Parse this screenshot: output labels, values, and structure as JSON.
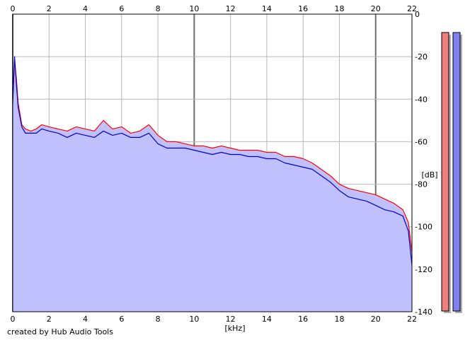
{
  "credit": "created by Hub Audio Tools",
  "chart_data": {
    "type": "line",
    "title": "",
    "xlabel": "[kHz]",
    "ylabel": "[dB]",
    "xlim": [
      0,
      22
    ],
    "ylim": [
      -140,
      0
    ],
    "x_ticks": [
      0,
      2,
      4,
      6,
      8,
      10,
      12,
      14,
      16,
      18,
      20,
      22
    ],
    "y_ticks": [
      0,
      -20,
      -40,
      -60,
      -80,
      -100,
      -120,
      -140
    ],
    "grid": true,
    "legend": "none",
    "x_tick_positions": [
      "top",
      "bottom"
    ],
    "y_tick_position": "right",
    "colors": {
      "plot_background": "#ffffff",
      "gridline": "#b8b8b8",
      "major_gridline": "#6e6e6e",
      "area_fill": "#c0c0ff",
      "left_channel": "#ff0000",
      "right_channel": "#0000c8",
      "meter_left": "#f08080",
      "meter_right": "#8080f0"
    },
    "series": [
      {
        "color": "#ff0000",
        "x": [
          0,
          0.1,
          0.2,
          0.3,
          0.5,
          0.7,
          1.0,
          1.3,
          1.6,
          2.0,
          2.5,
          3.0,
          3.5,
          4.0,
          4.5,
          5.0,
          5.5,
          6.0,
          6.5,
          7.0,
          7.5,
          8.0,
          8.5,
          9.0,
          9.5,
          10.0,
          10.5,
          11.0,
          11.5,
          12.0,
          12.5,
          13.0,
          13.5,
          14.0,
          14.5,
          15.0,
          15.5,
          16.0,
          16.5,
          17.0,
          17.5,
          18.0,
          18.5,
          19.0,
          19.5,
          20.0,
          20.5,
          21.0,
          21.5,
          21.8,
          22.0
        ],
        "values": [
          -40,
          -22,
          -30,
          -42,
          -52,
          -54,
          -55,
          -54,
          -52,
          -53,
          -54,
          -55,
          -53,
          -54,
          -55,
          -50,
          -54,
          -53,
          -56,
          -55,
          -52,
          -57,
          -60,
          -60,
          -61,
          -62,
          -62,
          -63,
          -62,
          -63,
          -64,
          -64,
          -64,
          -65,
          -65,
          -67,
          -67,
          -68,
          -70,
          -73,
          -76,
          -80,
          -82,
          -83,
          -84,
          -85,
          -87,
          -89,
          -92,
          -98,
          -112
        ]
      },
      {
        "color": "#0000c8",
        "x": [
          0,
          0.1,
          0.2,
          0.3,
          0.5,
          0.7,
          1.0,
          1.3,
          1.6,
          2.0,
          2.5,
          3.0,
          3.5,
          4.0,
          4.5,
          5.0,
          5.5,
          6.0,
          6.5,
          7.0,
          7.5,
          8.0,
          8.5,
          9.0,
          9.5,
          10.0,
          10.5,
          11.0,
          11.5,
          12.0,
          12.5,
          13.0,
          13.5,
          14.0,
          14.5,
          15.0,
          15.5,
          16.0,
          16.5,
          17.0,
          17.5,
          18.0,
          18.5,
          19.0,
          19.5,
          20.0,
          20.5,
          21.0,
          21.5,
          21.8,
          22.0
        ],
        "values": [
          -42,
          -20,
          -33,
          -44,
          -53,
          -56,
          -56,
          -56,
          -54,
          -55,
          -56,
          -58,
          -56,
          -57,
          -58,
          -55,
          -57,
          -56,
          -58,
          -58,
          -56,
          -61,
          -63,
          -63,
          -63,
          -64,
          -65,
          -66,
          -65,
          -66,
          -66,
          -67,
          -67,
          -68,
          -68,
          -70,
          -71,
          -72,
          -73,
          -76,
          -79,
          -83,
          -86,
          -87,
          -88,
          -90,
          -92,
          -93,
          -95,
          -102,
          -118
        ]
      }
    ],
    "level_meters": [
      {
        "color": "#f08080",
        "level": 1.0
      },
      {
        "color": "#8080f0",
        "level": 1.0
      }
    ]
  }
}
